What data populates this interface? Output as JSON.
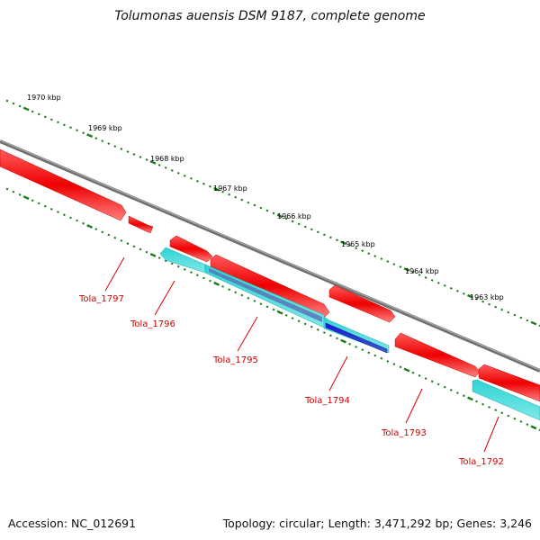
{
  "title": "Tolumonas auensis DSM 9187, complete genome",
  "footer": {
    "accession": "Accession: NC_012691",
    "topology": "Topology: circular; Length: 3,471,292 bp; Genes: 3,246"
  },
  "colors": {
    "forward_cds": "#ff2020",
    "reverse_cds": "#2fd3d3",
    "selected_cds": "#1515d8",
    "backbone": "#8a8a8a",
    "ruler_ticks": "#1a7a1a",
    "gene_label": "#cc0000"
  },
  "ruler": {
    "labels": [
      "1970 kbp",
      "1969 kbp",
      "1968 kbp",
      "1967 kbp",
      "1966 kbp",
      "1965 kbp",
      "1964 kbp",
      "1963 kbp"
    ]
  },
  "genes": [
    {
      "name": "Tola_1797",
      "strand": "+"
    },
    {
      "name": "Tola_1796",
      "strand": "-"
    },
    {
      "name": "Tola_1795",
      "strand": "+"
    },
    {
      "name": "Tola_1794",
      "strand": "-"
    },
    {
      "name": "Tola_1793",
      "strand": "+"
    },
    {
      "name": "Tola_1792",
      "strand": "-"
    }
  ]
}
